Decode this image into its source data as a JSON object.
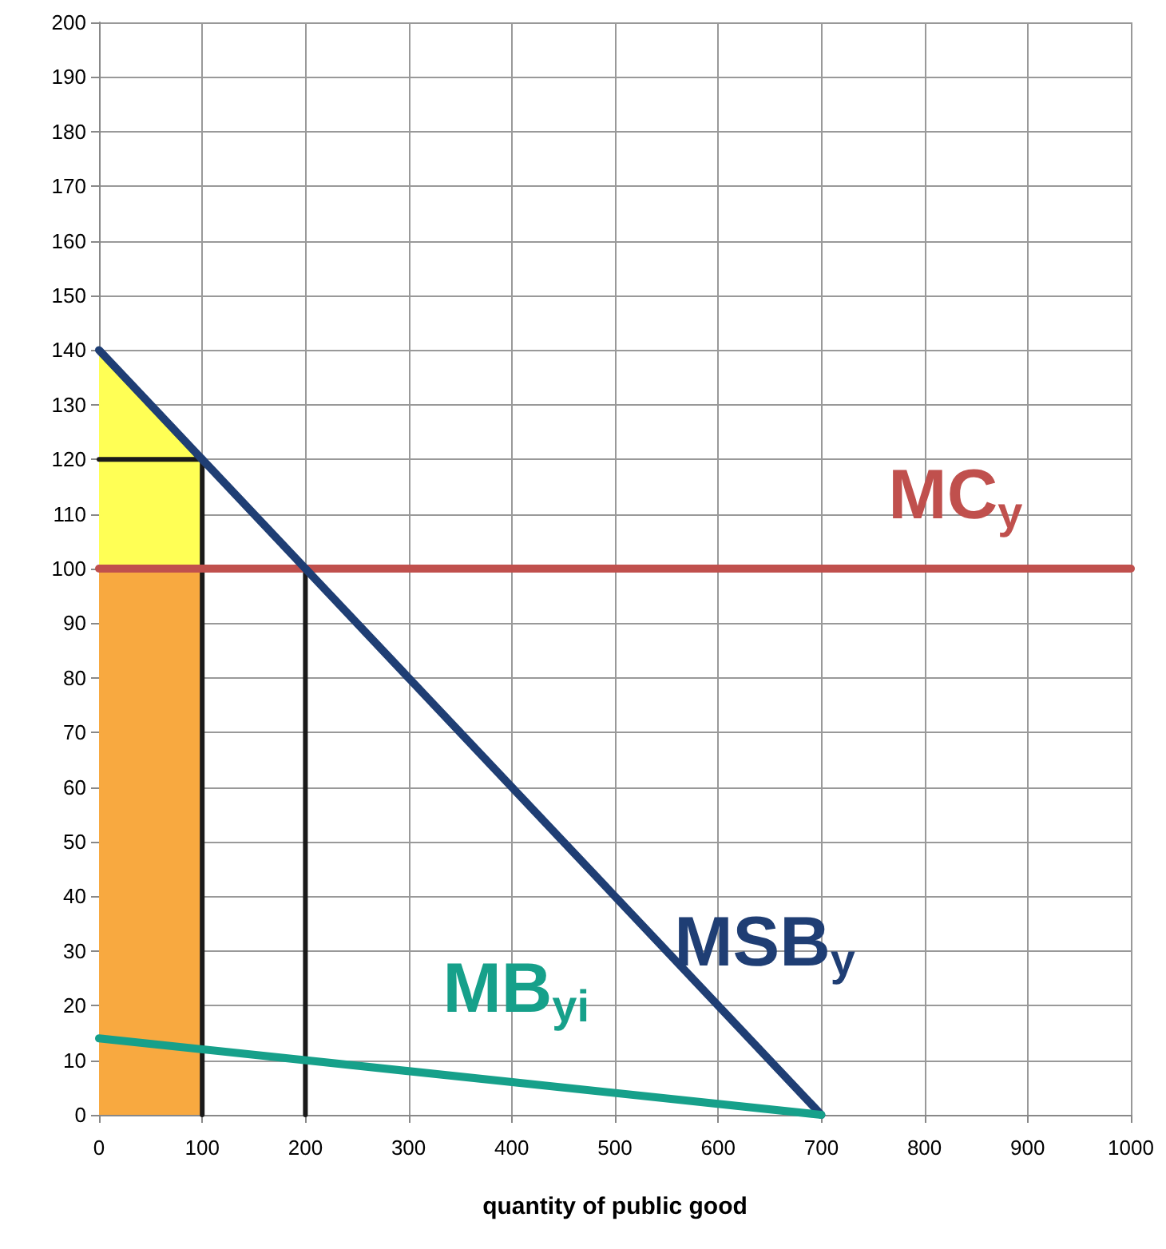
{
  "chart_data": {
    "type": "line",
    "xlabel": "quantity of public good",
    "xlim": [
      0,
      1000
    ],
    "xticks": [
      0,
      100,
      200,
      300,
      400,
      500,
      600,
      700,
      800,
      900,
      1000
    ],
    "ylim": [
      0,
      200
    ],
    "yticks": [
      0,
      10,
      20,
      30,
      40,
      50,
      60,
      70,
      80,
      90,
      100,
      110,
      120,
      130,
      140,
      150,
      160,
      170,
      180,
      190,
      200
    ],
    "grid": true,
    "legend": false,
    "marker": "none",
    "line_style": "solid",
    "series": [
      {
        "type": "area",
        "color": "#ffff55",
        "x": [
          0,
          100
        ],
        "values": [
          140,
          120
        ]
      },
      {
        "type": "area",
        "color": "#f8a940",
        "x": [
          0,
          100
        ],
        "values": [
          100,
          100
        ]
      },
      {
        "color": "#1a1a1a",
        "x": [
          100,
          100
        ],
        "values": [
          0,
          120
        ]
      },
      {
        "color": "#1a1a1a",
        "x": [
          200,
          200
        ],
        "values": [
          0,
          100
        ]
      },
      {
        "color": "#1a1a1a",
        "x": [
          0,
          100
        ],
        "values": [
          120,
          120
        ]
      },
      {
        "name": "MC$_{y}$",
        "color": "#c0504d",
        "x": [
          0,
          1000
        ],
        "values": [
          100,
          100
        ]
      },
      {
        "name": "MSB$_{y}$",
        "color": "#1f3e74",
        "x": [
          0,
          700
        ],
        "values": [
          140,
          0
        ]
      },
      {
        "name": "MB$_{yi}$",
        "color": "#16a08a",
        "x": [
          0,
          700
        ],
        "values": [
          14,
          0
        ]
      }
    ]
  }
}
